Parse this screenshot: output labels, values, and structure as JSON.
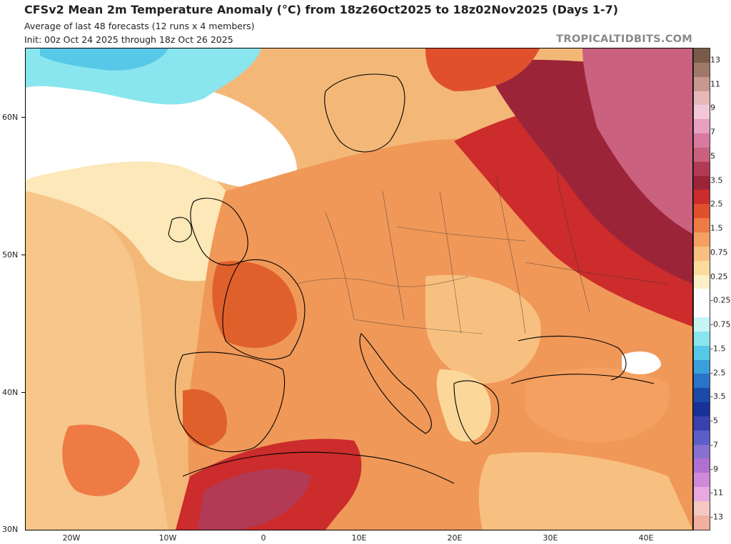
{
  "header": {
    "title": "CFSv2 Mean 2m Temperature Anomaly (°C) from 18z26Oct2025 to 18z02Nov2025 (Days 1-7)",
    "subtitle1": "Average of last 48 forecasts (12 runs x 4 members)",
    "subtitle2": "Init: 00z Oct 24 2025 through 18z Oct 26 2025",
    "brand": "TROPICALTIDBITS.COM"
  },
  "axes": {
    "lat_labels": [
      "60N",
      "50N",
      "40N",
      "30N"
    ],
    "lon_labels": [
      "20W",
      "10W",
      "0",
      "10E",
      "20E",
      "30E",
      "40E"
    ]
  },
  "colorbar": {
    "labels": [
      "13",
      "11",
      "9",
      "7",
      "5",
      "3.5",
      "2.5",
      "1.5",
      "0.75",
      "0.25",
      "-0.25",
      "-0.75",
      "-1.5",
      "-2.5",
      "-3.5",
      "-5",
      "-7",
      "-9",
      "-11",
      "-13"
    ],
    "colors": [
      "#7a5a48",
      "#a0786a",
      "#c79790",
      "#e6b8b8",
      "#f2c8d8",
      "#e8a0c0",
      "#d8799f",
      "#c9617f",
      "#b23a55",
      "#9c2438",
      "#cc2c2c",
      "#e0502c",
      "#ee7a44",
      "#f4a060",
      "#f8c080",
      "#fbdc9c",
      "#fdf0c8",
      "#ffffff",
      "#ffffff",
      "#c8f4f4",
      "#8ae6ee",
      "#58c8e8",
      "#3aa0dc",
      "#2a74c8",
      "#1c4aa8",
      "#18309a",
      "#3a40b0",
      "#5a60c8",
      "#8870d0",
      "#b070d0",
      "#d088d8",
      "#e8a8e0",
      "#f4c8c0",
      "#f0b0a0"
    ]
  },
  "map": {
    "regions": [
      "cold-anomaly-north-atlantic",
      "warm-anomaly-eastern-europe",
      "warm-anomaly-north-africa",
      "cool-spot-caucasus"
    ]
  }
}
